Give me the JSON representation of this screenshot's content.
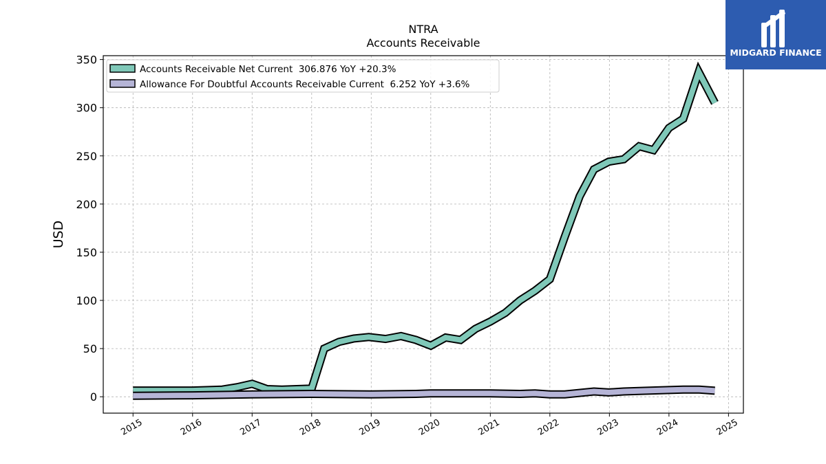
{
  "chart_data": {
    "type": "line",
    "title": "NTRA",
    "subtitle": "Accounts Receivable",
    "xlabel": "",
    "ylabel": "USD",
    "xlim": [
      2014.5,
      2025.25
    ],
    "ylim": [
      -17,
      354
    ],
    "x_ticks": [
      "2015",
      "2016",
      "2017",
      "2018",
      "2019",
      "2020",
      "2021",
      "2022",
      "2023",
      "2024",
      "2025"
    ],
    "y_ticks": [
      "0",
      "50",
      "100",
      "150",
      "200",
      "250",
      "300",
      "350"
    ],
    "grid": true,
    "legend_position": "top-left",
    "series": [
      {
        "name": "Accounts Receivable Net Current  306.876 YoY +20.3%",
        "color": "#7fc8b8",
        "x": [
          2015.0,
          2016.0,
          2016.5,
          2016.75,
          2017.0,
          2017.25,
          2017.5,
          2017.75,
          2018.0,
          2018.21,
          2018.46,
          2018.71,
          2018.96,
          2019.24,
          2019.5,
          2019.75,
          2020.0,
          2020.25,
          2020.5,
          2020.75,
          2021.0,
          2021.25,
          2021.5,
          2021.75,
          2022.0,
          2022.25,
          2022.5,
          2022.74,
          2022.99,
          2023.24,
          2023.5,
          2023.74,
          2024.0,
          2024.24,
          2024.5,
          2024.77
        ],
        "values": [
          6.5,
          6.5,
          7.5,
          10,
          13.5,
          8,
          7.5,
          8,
          8.5,
          50,
          57,
          60.5,
          62,
          60,
          63,
          59,
          53,
          61.5,
          59,
          70.5,
          78,
          87,
          100,
          110,
          122,
          166,
          208,
          236,
          244,
          246.5,
          260,
          256,
          279,
          288.5,
          337,
          305
        ]
      },
      {
        "name": "Allowance For Doubtful Accounts Receivable Current  6.252 YoY +3.6%",
        "color": "#b5b4d6",
        "x": [
          2015.0,
          2016.0,
          2017.0,
          2018.0,
          2019.0,
          2019.75,
          2020.0,
          2021.0,
          2021.5,
          2021.75,
          2022.0,
          2022.25,
          2022.74,
          2022.99,
          2023.24,
          2023.5,
          2024.0,
          2024.24,
          2024.5,
          2024.77
        ],
        "values": [
          1,
          1.5,
          2.5,
          3,
          2.5,
          3,
          3.5,
          3.5,
          3,
          3.5,
          2.5,
          2.5,
          5.5,
          4.5,
          5.5,
          6,
          7,
          7.5,
          7.5,
          6.25
        ]
      }
    ]
  },
  "logo": {
    "name": "MIDGARD FINANCE",
    "background": "#2d5cb0"
  }
}
